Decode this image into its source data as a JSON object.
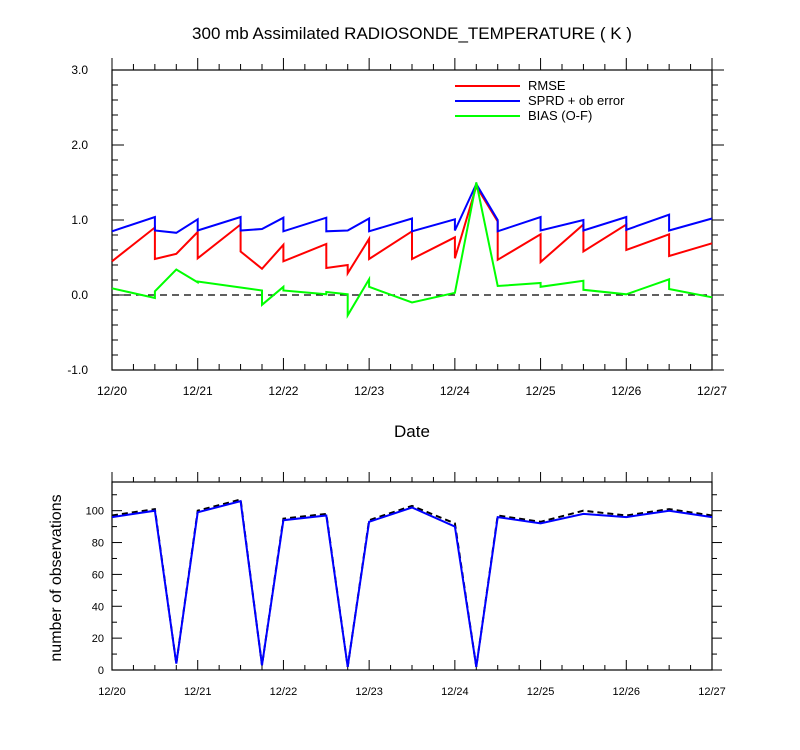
{
  "chart_data": [
    {
      "type": "line",
      "title": "300 mb Assimilated RADIOSONDE_TEMPERATURE ( K )",
      "xlabel": "Date",
      "ylabel": "",
      "ylim": [
        -1.0,
        3.0
      ],
      "xlim": [
        "12/20 00Z",
        "12/27 00Z"
      ],
      "x_tick_labels": [
        "12/20",
        "12/21",
        "12/22",
        "12/23",
        "12/24",
        "12/25",
        "12/26",
        "12/27"
      ],
      "y_tick_labels": [
        "-1.0",
        "0.0",
        "1.0",
        "2.0",
        "3.0"
      ],
      "y_ticks": [
        -1,
        0,
        1,
        2,
        3
      ],
      "reference_line": 0,
      "legend_position": "top-right",
      "series": [
        {
          "name": "RMSE",
          "color": "#ff0000",
          "points": [
            [
              0,
              0.45
            ],
            [
              0.5,
              0.9
            ],
            [
              0.5,
              0.48
            ],
            [
              0.75,
              0.55
            ],
            [
              1.0,
              0.84
            ],
            [
              1.0,
              0.49
            ],
            [
              1.5,
              0.94
            ],
            [
              1.5,
              0.58
            ],
            [
              1.75,
              0.35
            ],
            [
              2.0,
              0.67
            ],
            [
              2.0,
              0.45
            ],
            [
              2.5,
              0.68
            ],
            [
              2.5,
              0.36
            ],
            [
              2.75,
              0.4
            ],
            [
              2.75,
              0.29
            ],
            [
              3.0,
              0.75
            ],
            [
              3.0,
              0.48
            ],
            [
              3.5,
              0.85
            ],
            [
              3.5,
              0.48
            ],
            [
              4.0,
              0.77
            ],
            [
              4.0,
              0.49
            ],
            [
              4.25,
              1.45
            ],
            [
              4.5,
              0.98
            ],
            [
              4.5,
              0.47
            ],
            [
              5.0,
              0.81
            ],
            [
              5.0,
              0.44
            ],
            [
              5.5,
              0.94
            ],
            [
              5.5,
              0.58
            ],
            [
              6.0,
              0.94
            ],
            [
              6.0,
              0.6
            ],
            [
              6.5,
              0.81
            ],
            [
              6.5,
              0.52
            ],
            [
              7.0,
              0.69
            ]
          ]
        },
        {
          "name": "SPRD + ob error",
          "color": "#0000ff",
          "points": [
            [
              0,
              0.85
            ],
            [
              0.5,
              1.04
            ],
            [
              0.5,
              0.86
            ],
            [
              0.75,
              0.83
            ],
            [
              1.0,
              1.01
            ],
            [
              1.0,
              0.86
            ],
            [
              1.5,
              1.04
            ],
            [
              1.5,
              0.86
            ],
            [
              1.75,
              0.88
            ],
            [
              2.0,
              1.03
            ],
            [
              2.0,
              0.85
            ],
            [
              2.5,
              1.03
            ],
            [
              2.5,
              0.85
            ],
            [
              2.75,
              0.86
            ],
            [
              3.0,
              1.02
            ],
            [
              3.0,
              0.85
            ],
            [
              3.5,
              1.02
            ],
            [
              3.5,
              0.85
            ],
            [
              4.0,
              1.01
            ],
            [
              4.0,
              0.86
            ],
            [
              4.25,
              1.48
            ],
            [
              4.5,
              1.0
            ],
            [
              4.5,
              0.85
            ],
            [
              5.0,
              1.04
            ],
            [
              5.0,
              0.86
            ],
            [
              5.5,
              1.0
            ],
            [
              5.5,
              0.86
            ],
            [
              6.0,
              1.04
            ],
            [
              6.0,
              0.87
            ],
            [
              6.5,
              1.07
            ],
            [
              6.5,
              0.86
            ],
            [
              7.0,
              1.02
            ]
          ]
        },
        {
          "name": "BIAS (O-F)",
          "color": "#00ff00",
          "points": [
            [
              0,
              0.09
            ],
            [
              0.5,
              -0.04
            ],
            [
              0.5,
              0.05
            ],
            [
              0.75,
              0.34
            ],
            [
              1.0,
              0.17
            ],
            [
              1.0,
              0.18
            ],
            [
              1.5,
              0.1
            ],
            [
              1.75,
              0.06
            ],
            [
              1.75,
              -0.13
            ],
            [
              2.0,
              0.11
            ],
            [
              2.0,
              0.06
            ],
            [
              2.5,
              0.01
            ],
            [
              2.5,
              0.04
            ],
            [
              2.75,
              0.01
            ],
            [
              2.75,
              -0.27
            ],
            [
              3.0,
              0.21
            ],
            [
              3.0,
              0.11
            ],
            [
              3.5,
              -0.1
            ],
            [
              4.0,
              0.03
            ],
            [
              4.25,
              1.5
            ],
            [
              4.5,
              0.12
            ],
            [
              5.0,
              0.16
            ],
            [
              5.0,
              0.11
            ],
            [
              5.5,
              0.19
            ],
            [
              5.5,
              0.07
            ],
            [
              6.0,
              0.01
            ],
            [
              6.5,
              0.21
            ],
            [
              6.5,
              0.08
            ],
            [
              7.0,
              -0.03
            ]
          ]
        }
      ]
    },
    {
      "type": "line",
      "title": "",
      "xlabel": "",
      "ylabel": "number of observations",
      "ylim": [
        0,
        118
      ],
      "xlim": [
        "12/20 00Z",
        "12/27 00Z"
      ],
      "x_tick_labels": [
        "12/20",
        "12/21",
        "12/22",
        "12/23",
        "12/24",
        "12/25",
        "12/26",
        "12/27"
      ],
      "y_tick_labels": [
        "0",
        "20",
        "40",
        "60",
        "80",
        "100"
      ],
      "y_ticks": [
        0,
        20,
        40,
        60,
        80,
        100
      ],
      "series": [
        {
          "name": "",
          "color": "#000000",
          "dashed": true,
          "points": [
            [
              0,
              97
            ],
            [
              0.5,
              101
            ],
            [
              0.75,
              4
            ],
            [
              1.0,
              100
            ],
            [
              1.5,
              107
            ],
            [
              1.75,
              3
            ],
            [
              2.0,
              95
            ],
            [
              2.5,
              98
            ],
            [
              2.75,
              2
            ],
            [
              3.0,
              94
            ],
            [
              3.5,
              103
            ],
            [
              4.0,
              92
            ],
            [
              4.25,
              2
            ],
            [
              4.5,
              97
            ],
            [
              5.0,
              93
            ],
            [
              5.5,
              100
            ],
            [
              6.0,
              97
            ],
            [
              6.5,
              101
            ],
            [
              7.0,
              97
            ]
          ]
        },
        {
          "name": "",
          "color": "#0000ff",
          "dashed": false,
          "points": [
            [
              0,
              96
            ],
            [
              0.5,
              100
            ],
            [
              0.75,
              4
            ],
            [
              1.0,
              99
            ],
            [
              1.5,
              106
            ],
            [
              1.75,
              3
            ],
            [
              2.0,
              94
            ],
            [
              2.5,
              97
            ],
            [
              2.75,
              2
            ],
            [
              3.0,
              93
            ],
            [
              3.5,
              102
            ],
            [
              4.0,
              90
            ],
            [
              4.25,
              2
            ],
            [
              4.5,
              96
            ],
            [
              5.0,
              92
            ],
            [
              5.5,
              98
            ],
            [
              6.0,
              96
            ],
            [
              6.5,
              100
            ],
            [
              7.0,
              96
            ]
          ]
        }
      ]
    }
  ]
}
